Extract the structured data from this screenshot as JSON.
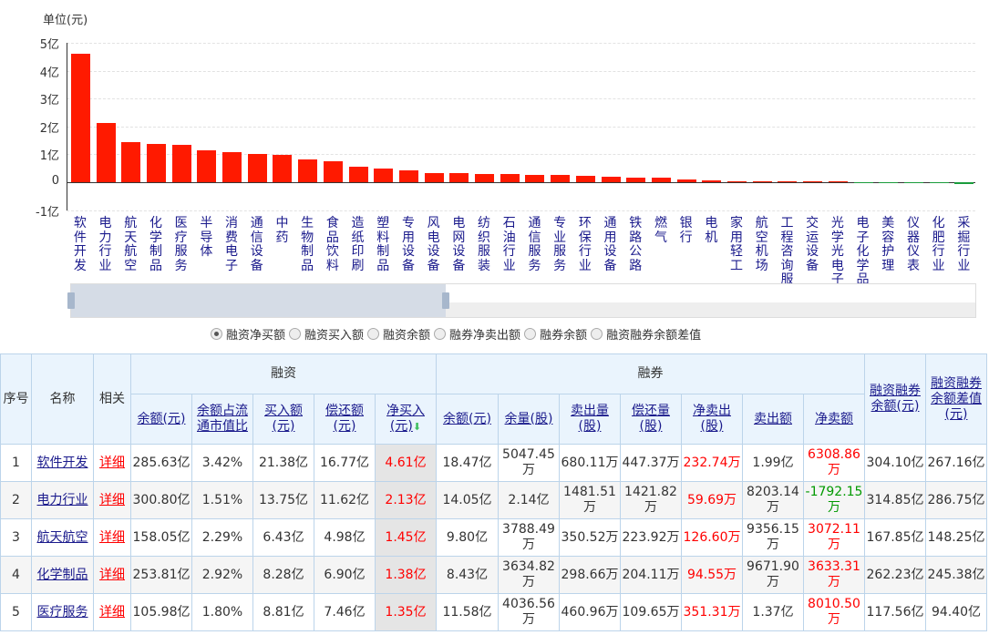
{
  "chart_data": {
    "type": "bar",
    "ylabel": "单位(元)",
    "yticks": [
      "5亿",
      "4亿",
      "3亿",
      "2亿",
      "1亿",
      "0",
      "-1亿"
    ],
    "ylim": [
      -1,
      5
    ],
    "grid": true,
    "unit": "亿元",
    "categories": [
      "软件开发",
      "电力行业",
      "航天航空",
      "化学制品",
      "医疗服务",
      "半导体",
      "消费电子",
      "通信设备",
      "中药",
      "生物制品",
      "食品饮料",
      "造纸印刷",
      "塑料制品",
      "专用设备",
      "风电设备",
      "电网设备",
      "纺织服装",
      "石油行业",
      "通信服务",
      "专业服务",
      "环保行业",
      "通用设备",
      "铁路公路",
      "燃气",
      "银行",
      "电机",
      "家用轻工",
      "航空机场",
      "工程咨询服务",
      "交运设备",
      "光学光电子",
      "电子化学品",
      "美容护理",
      "仪器仪表",
      "化肥行业",
      "采掘行业"
    ],
    "values": [
      4.61,
      2.13,
      1.45,
      1.38,
      1.35,
      1.15,
      1.08,
      1.0,
      0.97,
      0.83,
      0.74,
      0.56,
      0.49,
      0.44,
      0.34,
      0.33,
      0.31,
      0.3,
      0.27,
      0.25,
      0.22,
      0.2,
      0.17,
      0.15,
      0.1,
      0.06,
      0.01,
      0.008,
      0.005,
      0.002,
      0.0,
      -0.005,
      -0.01,
      -0.02,
      -0.04,
      -0.06
    ],
    "colors": {
      "positive": "#ff1a00",
      "negative": "#1a9c3c"
    }
  },
  "slider": {
    "range_percent": [
      0,
      41
    ]
  },
  "radios": {
    "selected": 0,
    "options": [
      "融资净买额",
      "融资买入额",
      "融资余额",
      "融券净卖出额",
      "融券余额",
      "融资融券余额差值"
    ]
  },
  "table": {
    "headers": {
      "index": "序号",
      "name": "名称",
      "related": "相关",
      "financing": "融资",
      "securities": "融券",
      "total": "融资融券余额(元)",
      "diff": "融资融券余额差值(元)",
      "fin_cols": [
        "余额(元)",
        "余额占流通市值比",
        "买入额(元)",
        "偿还额(元)",
        "净买入(元)"
      ],
      "sec_cols": [
        "余额(元)",
        "余量(股)",
        "卖出量(股)",
        "偿还量(股)",
        "净卖出(股)",
        "卖出额",
        "净卖额"
      ]
    },
    "detail_label": "详细",
    "rows": [
      {
        "i": "1",
        "name": "软件开发",
        "v": [
          "285.63亿",
          "3.42%",
          "21.38亿",
          "16.77亿",
          "4.61亿",
          "18.47亿",
          "5047.45万",
          "680.11万",
          "447.37万",
          "232.74万",
          "1.99亿",
          "6308.86万",
          "304.10亿",
          "267.16亿"
        ]
      },
      {
        "i": "2",
        "name": "电力行业",
        "v": [
          "300.80亿",
          "1.51%",
          "13.75亿",
          "11.62亿",
          "2.13亿",
          "14.05亿",
          "2.14亿",
          "1481.51万",
          "1421.82万",
          "59.69万",
          "8203.14万",
          "-1792.15万",
          "314.85亿",
          "286.75亿"
        ]
      },
      {
        "i": "3",
        "name": "航天航空",
        "v": [
          "158.05亿",
          "2.29%",
          "6.43亿",
          "4.98亿",
          "1.45亿",
          "9.80亿",
          "3788.49万",
          "350.52万",
          "223.92万",
          "126.60万",
          "9356.15万",
          "3072.11万",
          "167.85亿",
          "148.25亿"
        ]
      },
      {
        "i": "4",
        "name": "化学制品",
        "v": [
          "253.81亿",
          "2.92%",
          "8.28亿",
          "6.90亿",
          "1.38亿",
          "8.43亿",
          "3634.82万",
          "298.66万",
          "204.11万",
          "94.55万",
          "9671.90万",
          "3633.31万",
          "262.23亿",
          "245.38亿"
        ]
      },
      {
        "i": "5",
        "name": "医疗服务",
        "v": [
          "105.98亿",
          "1.80%",
          "8.81亿",
          "7.46亿",
          "1.35亿",
          "11.58亿",
          "4036.56万",
          "460.96万",
          "109.65万",
          "351.31万",
          "1.37亿",
          "8010.50万",
          "117.56亿",
          "94.40亿"
        ]
      }
    ]
  }
}
